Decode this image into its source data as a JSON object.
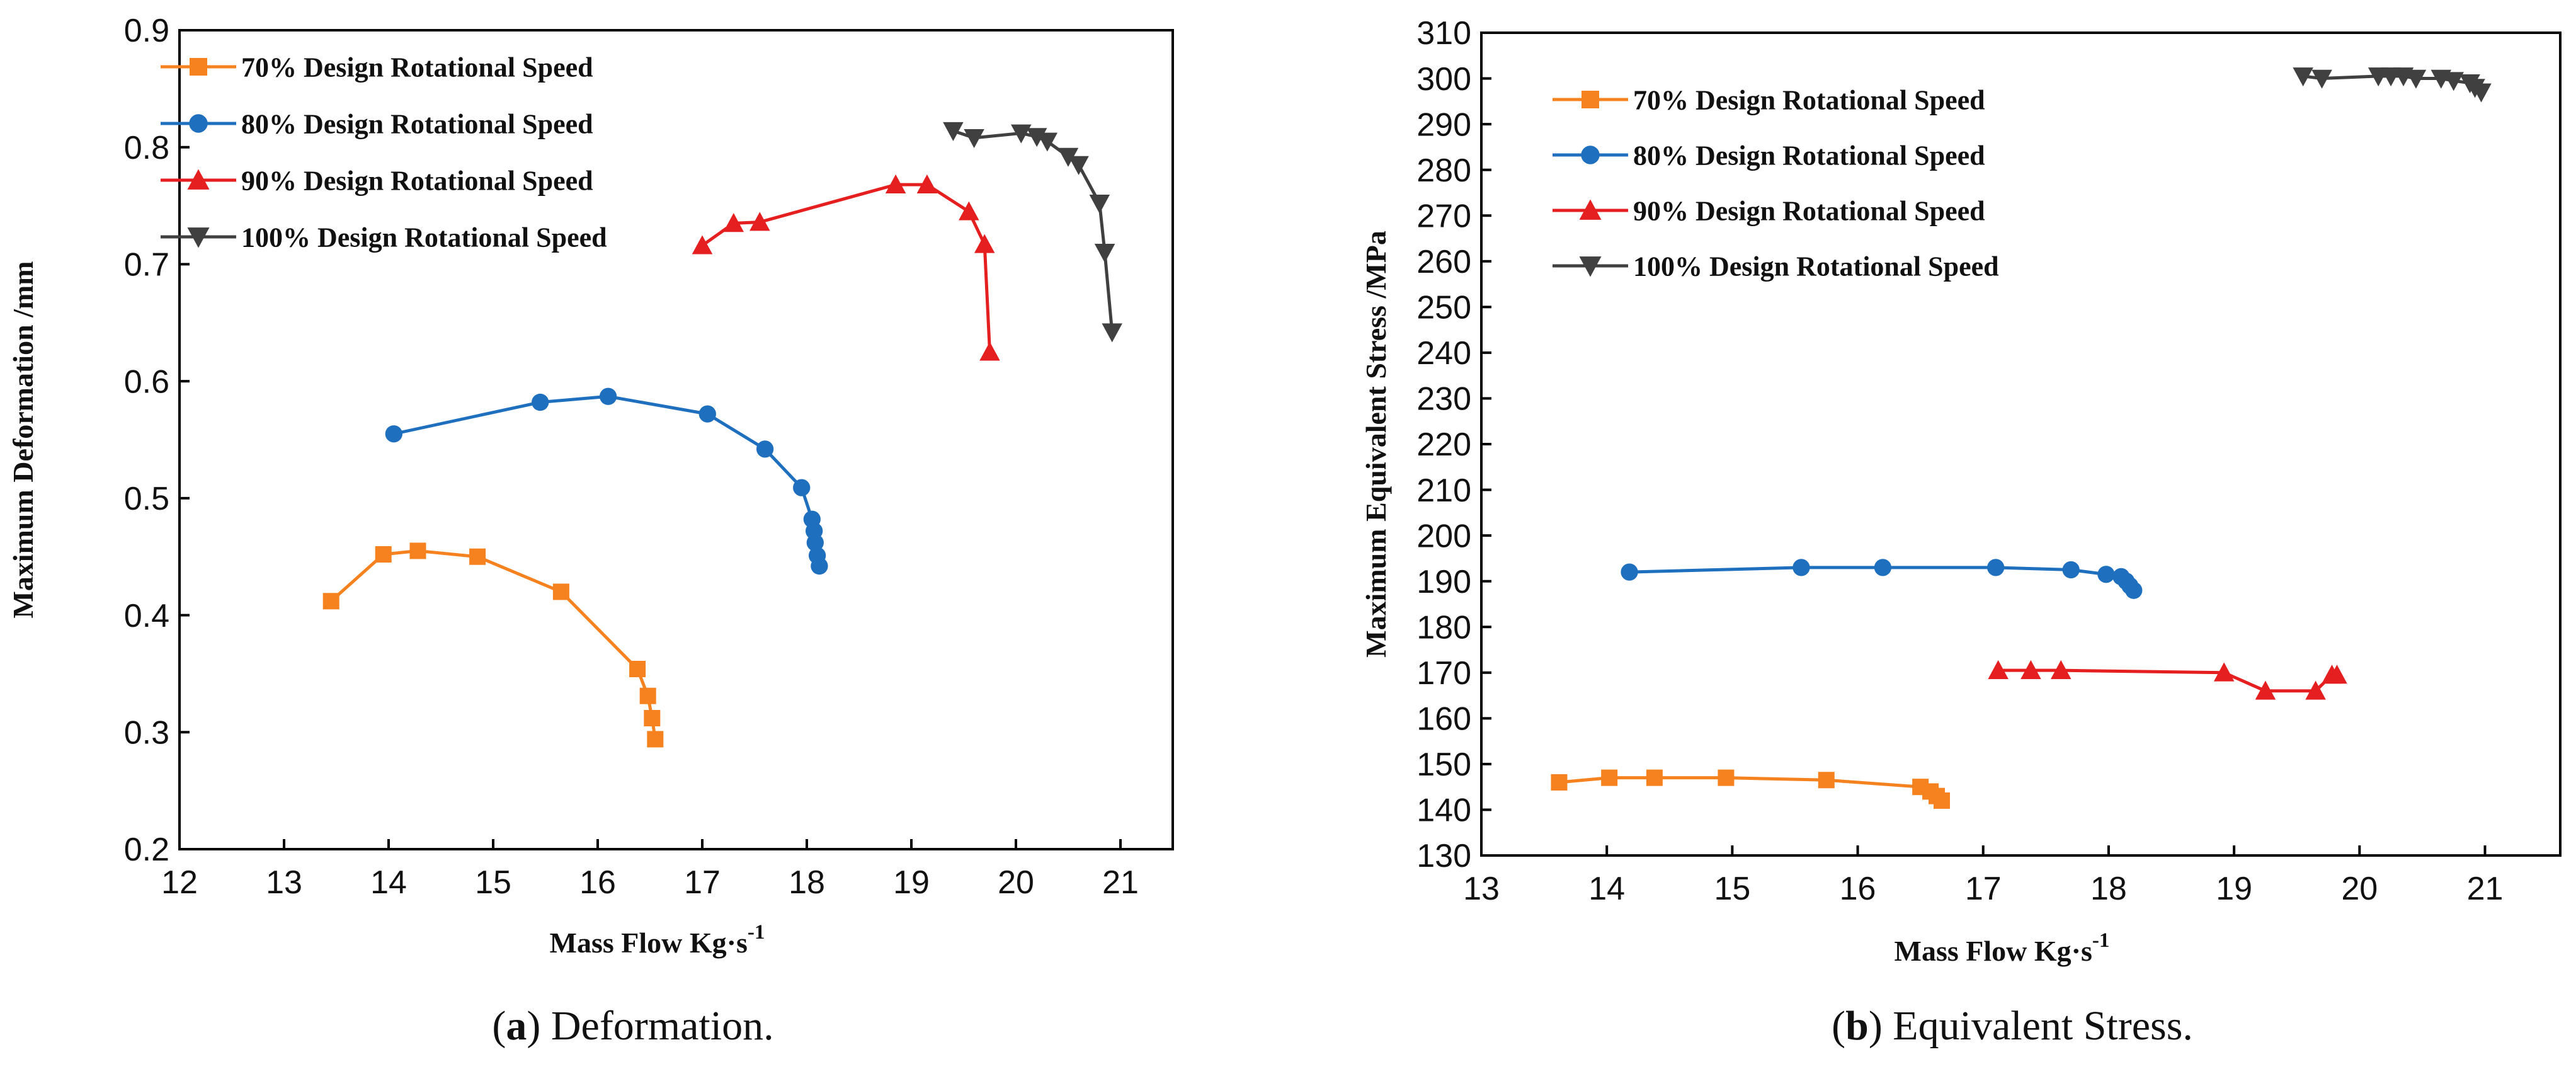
{
  "chart_data": [
    {
      "type": "line",
      "title": "",
      "caption_letter": "a",
      "caption_text": "Deformation.",
      "xlabel": "Mass Flow Kg·s",
      "xlabel_sup": "-1",
      "ylabel": "Maximum Deformation /mm",
      "xlim": [
        12,
        21.5
      ],
      "ylim": [
        0.2,
        0.9
      ],
      "xticks": [
        12,
        13,
        14,
        15,
        16,
        17,
        18,
        19,
        20,
        21
      ],
      "yticks": [
        0.2,
        0.3,
        0.4,
        0.5,
        0.6,
        0.7,
        0.8,
        0.9
      ],
      "legend_position": "top-left",
      "series": [
        {
          "name": "70% Design Rotational Speed",
          "color": "#f5821f",
          "marker": "square",
          "x": [
            13.45,
            13.95,
            14.28,
            14.85,
            15.65,
            16.38,
            16.48,
            16.52,
            16.55
          ],
          "y": [
            0.412,
            0.452,
            0.455,
            0.45,
            0.42,
            0.354,
            0.331,
            0.312,
            0.294
          ]
        },
        {
          "name": "80% Design Rotational Speed",
          "color": "#1f6fbf",
          "marker": "circle",
          "x": [
            14.05,
            15.45,
            16.1,
            17.05,
            17.6,
            17.95,
            18.05,
            18.07,
            18.08,
            18.1,
            18.12
          ],
          "y": [
            0.555,
            0.582,
            0.587,
            0.572,
            0.542,
            0.509,
            0.482,
            0.472,
            0.462,
            0.451,
            0.442
          ]
        },
        {
          "name": "90% Design Rotational Speed",
          "color": "#e51f1f",
          "marker": "triangle-up",
          "x": [
            17.0,
            17.3,
            17.55,
            18.85,
            19.15,
            19.55,
            19.7,
            19.75
          ],
          "y": [
            0.716,
            0.735,
            0.736,
            0.768,
            0.768,
            0.745,
            0.717,
            0.625
          ]
        },
        {
          "name": "100% Design Rotational Speed",
          "color": "#404040",
          "marker": "triangle-down",
          "x": [
            19.4,
            19.6,
            20.05,
            20.2,
            20.3,
            20.5,
            20.6,
            20.8,
            20.85,
            20.92
          ],
          "y": [
            0.814,
            0.808,
            0.812,
            0.809,
            0.805,
            0.792,
            0.785,
            0.752,
            0.71,
            0.642
          ]
        }
      ]
    },
    {
      "type": "line",
      "title": "",
      "caption_letter": "b",
      "caption_text": "Equivalent Stress.",
      "xlabel": "Mass Flow Kg·s",
      "xlabel_sup": "-1",
      "ylabel": "Maximum Equivalent Stress /MPa",
      "xlim": [
        13,
        21.6
      ],
      "ylim": [
        130,
        310
      ],
      "xticks": [
        13,
        14,
        15,
        16,
        17,
        18,
        19,
        20,
        21
      ],
      "yticks": [
        130,
        140,
        150,
        160,
        170,
        180,
        190,
        200,
        210,
        220,
        230,
        240,
        250,
        260,
        270,
        280,
        290,
        300,
        310
      ],
      "legend_position": "top-left",
      "series": [
        {
          "name": "70% Design Rotational Speed",
          "color": "#f5821f",
          "marker": "square",
          "x": [
            13.62,
            14.02,
            14.38,
            14.95,
            15.75,
            16.5,
            16.58,
            16.63,
            16.67
          ],
          "y": [
            146,
            147,
            147,
            147,
            146.5,
            145,
            144,
            143,
            142
          ]
        },
        {
          "name": "80% Design Rotational Speed",
          "color": "#1f6fbf",
          "marker": "circle",
          "x": [
            14.18,
            15.55,
            16.2,
            17.1,
            17.7,
            17.98,
            18.1,
            18.14,
            18.17,
            18.2
          ],
          "y": [
            192,
            193,
            193,
            193,
            192.5,
            191.5,
            191,
            190,
            189,
            188
          ]
        },
        {
          "name": "90% Design Rotational Speed",
          "color": "#e51f1f",
          "marker": "triangle-up",
          "x": [
            17.12,
            17.38,
            17.62,
            18.92,
            19.25,
            19.65,
            19.78,
            19.82
          ],
          "y": [
            170.5,
            170.5,
            170.5,
            170,
            166,
            166,
            169.5,
            169.5
          ]
        },
        {
          "name": "100% Design Rotational Speed",
          "color": "#404040",
          "marker": "triangle-down",
          "x": [
            19.55,
            19.7,
            20.15,
            20.25,
            20.35,
            20.45,
            20.65,
            20.75,
            20.88,
            20.92,
            20.97
          ],
          "y": [
            300.5,
            300,
            300.5,
            300.5,
            300.5,
            300,
            300,
            299.5,
            299,
            298,
            297
          ]
        }
      ]
    }
  ]
}
